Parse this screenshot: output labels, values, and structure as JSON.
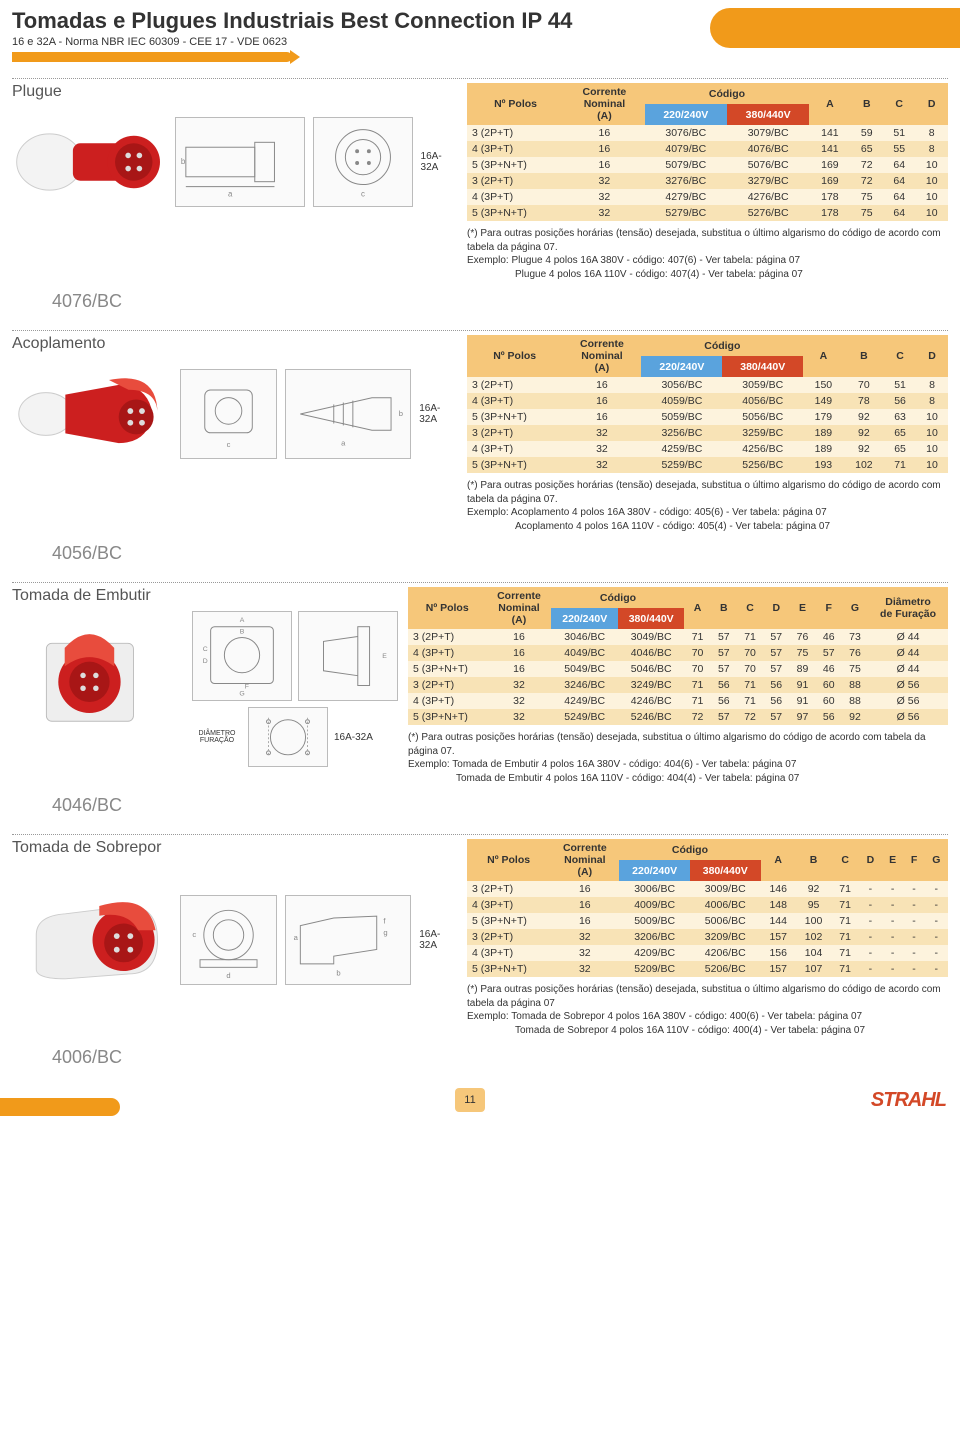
{
  "header": {
    "title": "Tomadas e Plugues Industriais Best Connection IP 44",
    "subtitle": "16 e 32A - Norma NBR IEC 60309 - CEE 17 - VDE 0623"
  },
  "page_number": "11",
  "brand": "STRAHL",
  "amp_label": "16A-32A",
  "common": {
    "col_polos": "Nº Polos",
    "col_corrente_l1": "Corrente",
    "col_corrente_l2": "Nominal",
    "col_corrente_l3": "(A)",
    "col_codigo": "Código",
    "col_220": "220/240V",
    "col_380": "380/440V",
    "col_A": "A",
    "col_B": "B",
    "col_C": "C",
    "col_D": "D",
    "col_E": "E",
    "col_F": "F",
    "col_G": "G",
    "col_diam_l1": "Diâmetro",
    "col_diam_l2": "de Furação"
  },
  "sections": {
    "plugue": {
      "label": "Plugue",
      "code": "4076/BC",
      "note_l1": "(*)  Para outras posições horárias (tensão) desejada, substitua o último algarismo do código de acordo com tabela da página 07.",
      "note_l2": "Exemplo: Plugue 4 polos 16A 380V - código: 407(6) - Ver tabela: página 07",
      "note_l3": "Plugue 4 polos 16A 110V - código: 407(4) - Ver tabela: página 07",
      "rows": [
        {
          "p": "3 (2P+T)",
          "a": "16",
          "c1": "3076/BC",
          "c2": "3079/BC",
          "A": "141",
          "B": "59",
          "C": "51",
          "D": "8"
        },
        {
          "p": "4 (3P+T)",
          "a": "16",
          "c1": "4079/BC",
          "c2": "4076/BC",
          "A": "141",
          "B": "65",
          "C": "55",
          "D": "8"
        },
        {
          "p": "5 (3P+N+T)",
          "a": "16",
          "c1": "5079/BC",
          "c2": "5076/BC",
          "A": "169",
          "B": "72",
          "C": "64",
          "D": "10"
        },
        {
          "p": "3 (2P+T)",
          "a": "32",
          "c1": "3276/BC",
          "c2": "3279/BC",
          "A": "169",
          "B": "72",
          "C": "64",
          "D": "10"
        },
        {
          "p": "4 (3P+T)",
          "a": "32",
          "c1": "4279/BC",
          "c2": "4276/BC",
          "A": "178",
          "B": "75",
          "C": "64",
          "D": "10"
        },
        {
          "p": "5 (3P+N+T)",
          "a": "32",
          "c1": "5279/BC",
          "c2": "5276/BC",
          "A": "178",
          "B": "75",
          "C": "64",
          "D": "10"
        }
      ]
    },
    "acoplamento": {
      "label": "Acoplamento",
      "code": "4056/BC",
      "note_l1": "(*)  Para outras posições horárias (tensão) desejada, substitua o último algarismo do código de acordo com tabela da página 07.",
      "note_l2": "Exemplo: Acoplamento 4 polos 16A 380V - código: 405(6) - Ver tabela: página 07",
      "note_l3": "Acoplamento 4 polos 16A 110V - código: 405(4) - Ver tabela: página 07",
      "rows": [
        {
          "p": "3 (2P+T)",
          "a": "16",
          "c1": "3056/BC",
          "c2": "3059/BC",
          "A": "150",
          "B": "70",
          "C": "51",
          "D": "8"
        },
        {
          "p": "4 (3P+T)",
          "a": "16",
          "c1": "4059/BC",
          "c2": "4056/BC",
          "A": "149",
          "B": "78",
          "C": "56",
          "D": "8"
        },
        {
          "p": "5 (3P+N+T)",
          "a": "16",
          "c1": "5059/BC",
          "c2": "5056/BC",
          "A": "179",
          "B": "92",
          "C": "63",
          "D": "10"
        },
        {
          "p": "3 (2P+T)",
          "a": "32",
          "c1": "3256/BC",
          "c2": "3259/BC",
          "A": "189",
          "B": "92",
          "C": "65",
          "D": "10"
        },
        {
          "p": "4 (3P+T)",
          "a": "32",
          "c1": "4259/BC",
          "c2": "4256/BC",
          "A": "189",
          "B": "92",
          "C": "65",
          "D": "10"
        },
        {
          "p": "5 (3P+N+T)",
          "a": "32",
          "c1": "5259/BC",
          "c2": "5256/BC",
          "A": "193",
          "B": "102",
          "C": "71",
          "D": "10"
        }
      ]
    },
    "embutir": {
      "label": "Tomada de Embutir",
      "code": "4046/BC",
      "note_l1": "(*) Para outras posições horárias (tensão) desejada, substitua o último algarismo do código de acordo com tabela da página 07.",
      "note_l2": "Exemplo: Tomada de Embutir 4 polos 16A 380V - código: 404(6) - Ver tabela: página 07",
      "note_l3": "Tomada de Embutir 4 polos 16A 110V - código: 404(4) - Ver tabela: página 07",
      "diam_label": "DIÂMETRO FURAÇÃO",
      "rows": [
        {
          "p": "3 (2P+T)",
          "a": "16",
          "c1": "3046/BC",
          "c2": "3049/BC",
          "A": "71",
          "B": "57",
          "C": "71",
          "D": "57",
          "E": "76",
          "F": "46",
          "G": "73",
          "diam": "Ø 44"
        },
        {
          "p": "4 (3P+T)",
          "a": "16",
          "c1": "4049/BC",
          "c2": "4046/BC",
          "A": "70",
          "B": "57",
          "C": "70",
          "D": "57",
          "E": "75",
          "F": "57",
          "G": "76",
          "diam": "Ø 44"
        },
        {
          "p": "5 (3P+N+T)",
          "a": "16",
          "c1": "5049/BC",
          "c2": "5046/BC",
          "A": "70",
          "B": "57",
          "C": "70",
          "D": "57",
          "E": "89",
          "F": "46",
          "G": "75",
          "diam": "Ø 44"
        },
        {
          "p": "3 (2P+T)",
          "a": "32",
          "c1": "3246/BC",
          "c2": "3249/BC",
          "A": "71",
          "B": "56",
          "C": "71",
          "D": "56",
          "E": "91",
          "F": "60",
          "G": "88",
          "diam": "Ø 56"
        },
        {
          "p": "4 (3P+T)",
          "a": "32",
          "c1": "4249/BC",
          "c2": "4246/BC",
          "A": "71",
          "B": "56",
          "C": "71",
          "D": "56",
          "E": "91",
          "F": "60",
          "G": "88",
          "diam": "Ø 56"
        },
        {
          "p": "5 (3P+N+T)",
          "a": "32",
          "c1": "5249/BC",
          "c2": "5246/BC",
          "A": "72",
          "B": "57",
          "C": "72",
          "D": "57",
          "E": "97",
          "F": "56",
          "G": "92",
          "diam": "Ø 56"
        }
      ]
    },
    "sobrepor": {
      "label": "Tomada de Sobrepor",
      "code": "4006/BC",
      "note_l1": "(*) Para outras posições horárias (tensão) desejada, substitua o último algarismo do código de acordo com tabela da página 07",
      "note_l2": "Exemplo: Tomada de Sobrepor 4 polos 16A 380V - código: 400(6) - Ver tabela: página 07",
      "note_l3": "Tomada de Sobrepor 4 polos 16A 110V - código: 400(4) - Ver tabela: página 07",
      "rows": [
        {
          "p": "3 (2P+T)",
          "a": "16",
          "c1": "3006/BC",
          "c2": "3009/BC",
          "A": "146",
          "B": "92",
          "C": "71",
          "D": "-",
          "E": "-",
          "F": "-",
          "G": "-"
        },
        {
          "p": "4 (3P+T)",
          "a": "16",
          "c1": "4009/BC",
          "c2": "4006/BC",
          "A": "148",
          "B": "95",
          "C": "71",
          "D": "-",
          "E": "-",
          "F": "-",
          "G": "-"
        },
        {
          "p": "5 (3P+N+T)",
          "a": "16",
          "c1": "5009/BC",
          "c2": "5006/BC",
          "A": "144",
          "B": "100",
          "C": "71",
          "D": "-",
          "E": "-",
          "F": "-",
          "G": "-"
        },
        {
          "p": "3 (2P+T)",
          "a": "32",
          "c1": "3206/BC",
          "c2": "3209/BC",
          "A": "157",
          "B": "102",
          "C": "71",
          "D": "-",
          "E": "-",
          "F": "-",
          "G": "-"
        },
        {
          "p": "4 (3P+T)",
          "a": "32",
          "c1": "4209/BC",
          "c2": "4206/BC",
          "A": "156",
          "B": "104",
          "C": "71",
          "D": "-",
          "E": "-",
          "F": "-",
          "G": "-"
        },
        {
          "p": "5 (3P+N+T)",
          "a": "32",
          "c1": "5209/BC",
          "c2": "5206/BC",
          "A": "157",
          "B": "107",
          "C": "71",
          "D": "-",
          "E": "-",
          "F": "-",
          "G": "-"
        }
      ]
    }
  },
  "colors": {
    "orange": "#f19a1a",
    "header_bg": "#f6c77a",
    "row_odd": "#fdf3dd",
    "row_even": "#f8e3b6",
    "blue": "#5aa3dd",
    "red": "#d34827",
    "plug_red": "#cc1f1f",
    "plug_white": "#f3f3f3"
  }
}
